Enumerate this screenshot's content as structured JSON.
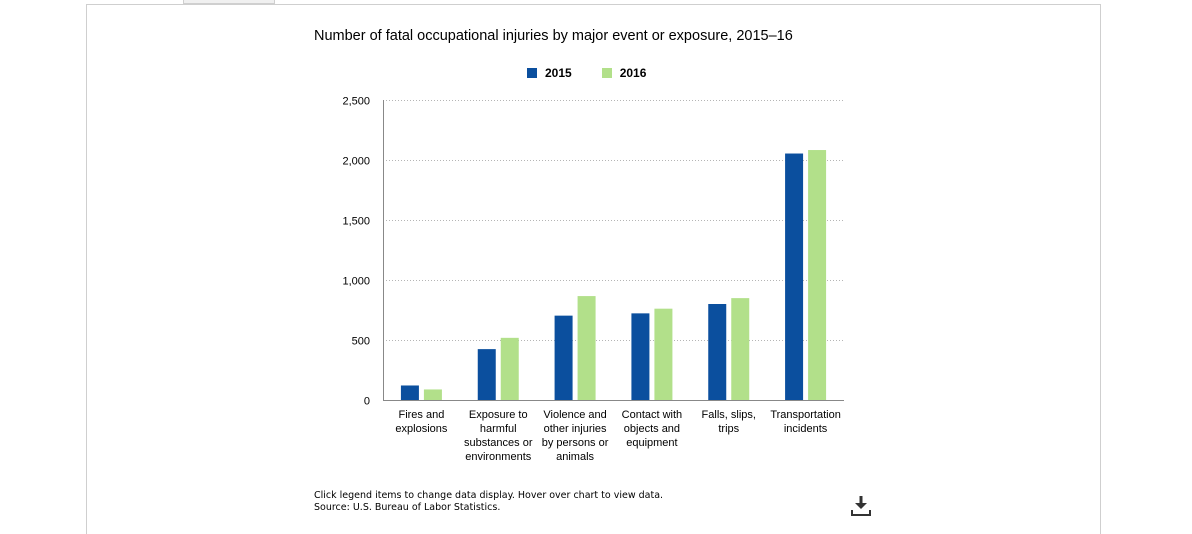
{
  "chart_data": {
    "type": "bar",
    "title": "Number of fatal occupational injuries by major event or exposure, 2015–16",
    "categories": [
      [
        "Fires and",
        "explosions"
      ],
      [
        "Exposure to",
        "harmful",
        "substances or",
        "environments"
      ],
      [
        "Violence and",
        "other injuries",
        "by persons or",
        "animals"
      ],
      [
        "Contact with",
        "objects and",
        "equipment"
      ],
      [
        "Falls, slips,",
        "trips"
      ],
      [
        "Transportation",
        "incidents"
      ]
    ],
    "series": [
      {
        "name": "2015",
        "color": "#0b4f9e",
        "values": [
          121,
          424,
          703,
          722,
          800,
          2054
        ]
      },
      {
        "name": "2016",
        "color": "#b2e08a",
        "values": [
          88,
          518,
          866,
          761,
          849,
          2083
        ]
      }
    ],
    "ylim": [
      0,
      2500
    ],
    "yticks": [
      0,
      500,
      1000,
      1500,
      2000,
      2500
    ],
    "ytick_labels": [
      "0",
      "500",
      "1,000",
      "1,500",
      "2,000",
      "2,500"
    ],
    "grid": true,
    "legend_position": "top-center"
  },
  "footnote": {
    "line1": "Click legend items to change data display. Hover over chart to view data.",
    "line2": "Source: U.S. Bureau of Labor Statistics."
  },
  "icons": {
    "download": "download-icon"
  }
}
